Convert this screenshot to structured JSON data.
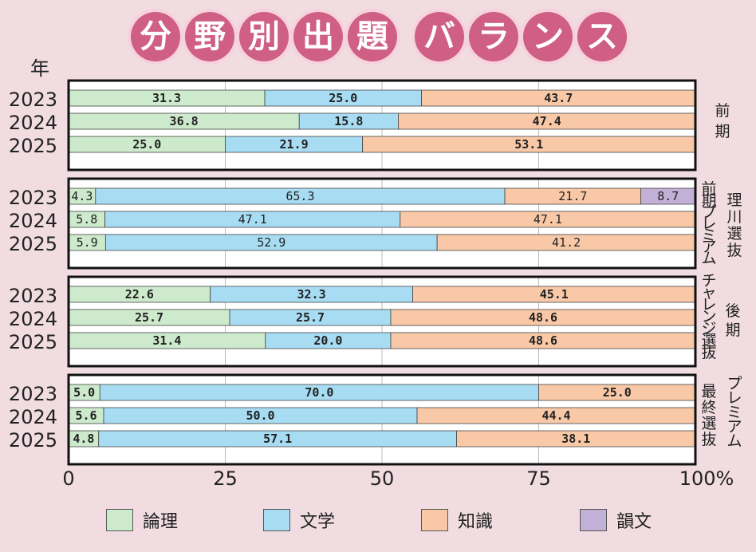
{
  "title": [
    "分",
    "野",
    "別",
    "出",
    "題",
    "バ",
    "ラ",
    "ン",
    "ス"
  ],
  "colors": {
    "title_circle": "#cf5f84",
    "論理": "#cdeacc",
    "文学": "#a8dcf3",
    "知識": "#f9c8a7",
    "韻文": "#c2b0d6",
    "background": "#f1dde1"
  },
  "chart_data": {
    "type": "bar",
    "orientation": "horizontal",
    "stacked": true,
    "title": "分野別出題バランス",
    "ylabel": "年",
    "xlim": [
      0,
      100
    ],
    "x_ticks": [
      "0",
      "25",
      "50",
      "75",
      "100%"
    ],
    "legend": [
      "論理",
      "文学",
      "知識",
      "韻文"
    ],
    "groups": [
      {
        "label_lines": [
          "前",
          "期"
        ],
        "years": [
          "2023",
          "2024",
          "2025"
        ],
        "series": [
          {
            "name": "論理",
            "values": [
              31.3,
              36.8,
              25.0
            ]
          },
          {
            "name": "文学",
            "values": [
              25.0,
              15.8,
              21.9
            ]
          },
          {
            "name": "知識",
            "values": [
              43.7,
              47.4,
              53.1
            ]
          },
          {
            "name": "韻文",
            "values": [
              0,
              0,
              0
            ]
          }
        ],
        "labels": [
          [
            "31.3",
            "25.0",
            "43.7",
            ""
          ],
          [
            "36.8",
            "15.8",
            "47.4",
            ""
          ],
          [
            "25.0",
            "21.9",
            "53.1",
            ""
          ]
        ]
      },
      {
        "label_lines": [
          "理",
          "川",
          "選",
          "抜"
        ],
        "label_lines_2": [
          "前",
          "期",
          "プ",
          "レ",
          "ミ",
          "ア",
          "ム"
        ],
        "years": [
          "2023",
          "2024",
          "2025"
        ],
        "series": [
          {
            "name": "論理",
            "values": [
              4.3,
              5.8,
              5.9
            ]
          },
          {
            "name": "文学",
            "values": [
              65.3,
              47.1,
              52.9
            ]
          },
          {
            "name": "知識",
            "values": [
              21.7,
              47.1,
              41.2
            ]
          },
          {
            "name": "韻文",
            "values": [
              8.7,
              0,
              0
            ]
          }
        ],
        "labels": [
          [
            "4.3",
            "65.3",
            "21.7",
            "8.7"
          ],
          [
            "5.8",
            "47.1",
            "47.1",
            ""
          ],
          [
            "5.9",
            "52.9",
            "41.2",
            ""
          ]
        ]
      },
      {
        "label_lines": [
          "後",
          "期"
        ],
        "label_lines_2": [
          "チ",
          "ャ",
          "レ",
          "ン",
          "ジ",
          "選",
          "抜"
        ],
        "years": [
          "2023",
          "2024",
          "2025"
        ],
        "series": [
          {
            "name": "論理",
            "values": [
              22.6,
              25.7,
              31.4
            ]
          },
          {
            "name": "文学",
            "values": [
              32.3,
              25.7,
              20.0
            ]
          },
          {
            "name": "知識",
            "values": [
              45.1,
              48.6,
              48.6
            ]
          },
          {
            "name": "韻文",
            "values": [
              0,
              0,
              0
            ]
          }
        ],
        "labels": [
          [
            "22.6",
            "32.3",
            "45.1",
            ""
          ],
          [
            "25.7",
            "25.7",
            "48.6",
            ""
          ],
          [
            "31.4",
            "20.0",
            "48.6",
            ""
          ]
        ]
      },
      {
        "label_lines": [
          "プ",
          "レ",
          "ミ",
          "ア",
          "ム"
        ],
        "label_lines_2": [
          "最",
          "終",
          "選",
          "抜"
        ],
        "years": [
          "2023",
          "2024",
          "2025"
        ],
        "series": [
          {
            "name": "論理",
            "values": [
              5.0,
              5.6,
              4.8
            ]
          },
          {
            "name": "文学",
            "values": [
              70.0,
              50.0,
              57.1
            ]
          },
          {
            "name": "知識",
            "values": [
              25.0,
              44.4,
              38.1
            ]
          },
          {
            "name": "韻文",
            "values": [
              0,
              0,
              0
            ]
          }
        ],
        "labels": [
          [
            "5.0",
            "70.0",
            "25.0",
            ""
          ],
          [
            "5.6",
            "50.0",
            "44.4",
            ""
          ],
          [
            "4.8",
            "57.1",
            "38.1",
            ""
          ]
        ]
      }
    ]
  }
}
